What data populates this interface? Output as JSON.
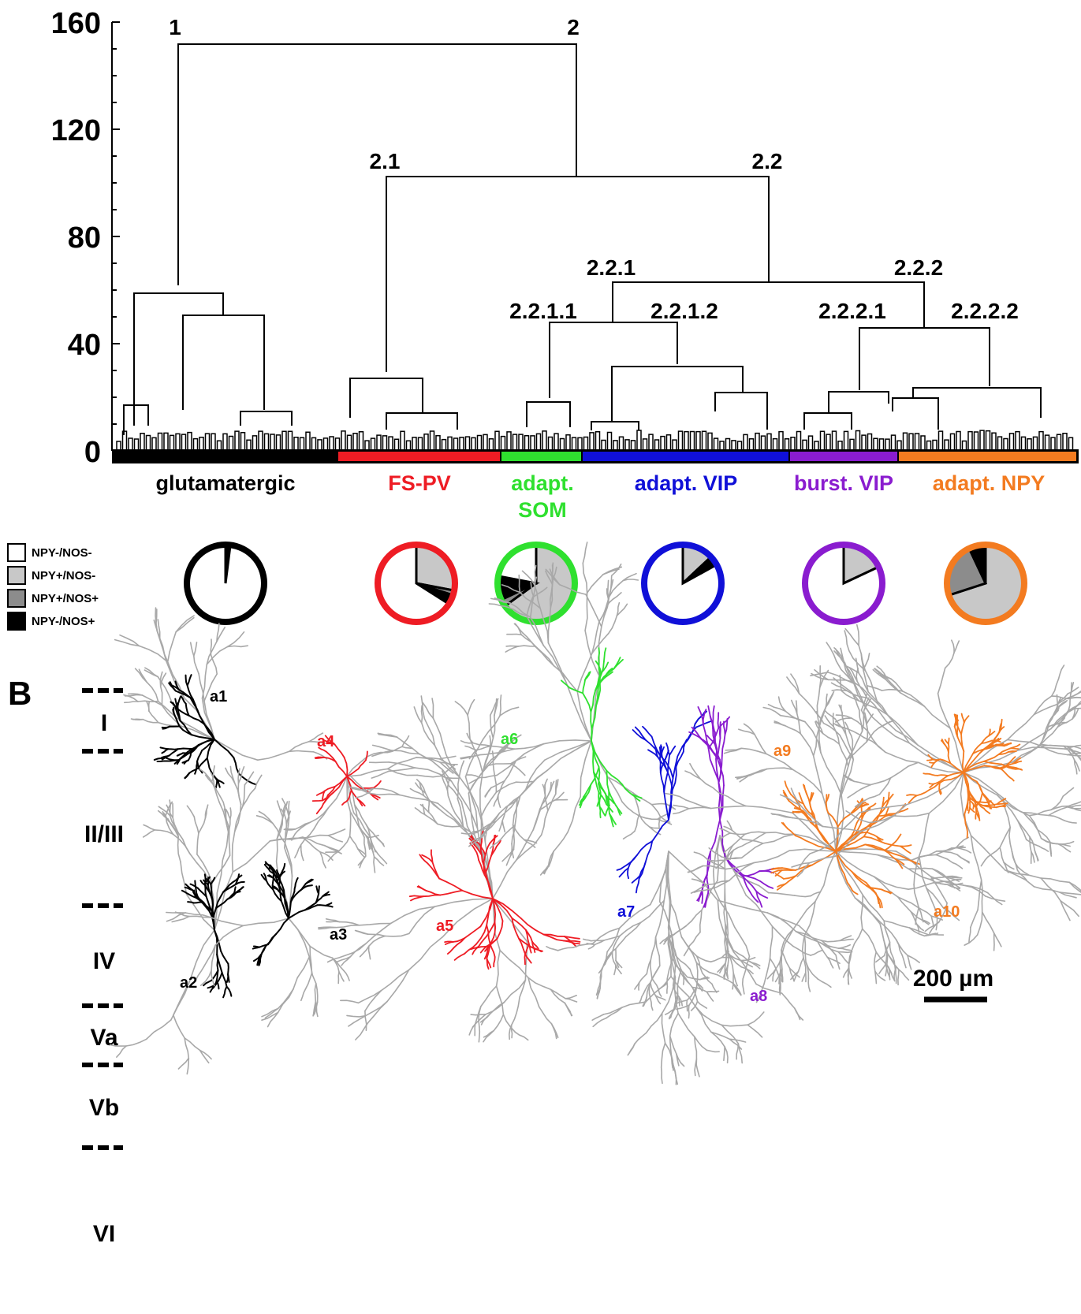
{
  "colors": {
    "glutamatergic": "#000000",
    "fs_pv": "#ee1c24",
    "adapt_som": "#2fe02f",
    "adapt_vip": "#1010d8",
    "burst_vip": "#8a1ccf",
    "adapt_npy": "#f37b20",
    "dendrite_gray": "#a8a8a8",
    "pie_light": "#c8c8c8",
    "pie_mid": "#8c8c8c"
  },
  "dendrogram": {
    "y_axis_ticks": [
      "0",
      "40",
      "80",
      "120",
      "160"
    ],
    "y_axis_range": [
      0,
      160
    ],
    "nodes": [
      {
        "label": "1",
        "height": 152
      },
      {
        "label": "2",
        "height": 152
      },
      {
        "label": "2.1",
        "height": 102
      },
      {
        "label": "2.2",
        "height": 102
      },
      {
        "label": "2.2.1",
        "height": 62
      },
      {
        "label": "2.2.2",
        "height": 62
      },
      {
        "label": "2.2.1.1",
        "height": 47
      },
      {
        "label": "2.2.1.2",
        "height": 47
      },
      {
        "label": "2.2.2.1",
        "height": 45
      },
      {
        "label": "2.2.2.2",
        "height": 45
      }
    ]
  },
  "groups": [
    {
      "key": "glutamatergic",
      "label": "glutamatergic",
      "label2": ""
    },
    {
      "key": "fs_pv",
      "label": "FS-PV",
      "label2": ""
    },
    {
      "key": "adapt_som",
      "label": "adapt.",
      "label2": "SOM"
    },
    {
      "key": "adapt_vip",
      "label": "adapt. VIP",
      "label2": ""
    },
    {
      "key": "burst_vip",
      "label": "burst. VIP",
      "label2": ""
    },
    {
      "key": "adapt_npy",
      "label": "adapt. NPY",
      "label2": ""
    }
  ],
  "legend": {
    "items": [
      {
        "label": "NPY-/NOS-",
        "color": "#ffffff"
      },
      {
        "label": "NPY+/NOS-",
        "color": "#c8c8c8"
      },
      {
        "label": "NPY+/NOS+",
        "color": "#8c8c8c"
      },
      {
        "label": "NPY-/NOS+",
        "color": "#000000"
      }
    ]
  },
  "pies": [
    {
      "group": "glutamatergic",
      "fractions": {
        "npy_neg_nos_neg": 0.98,
        "npy_pos_nos_neg": 0.01,
        "npy_pos_nos_pos": 0.0,
        "npy_neg_nos_pos": 0.01
      }
    },
    {
      "group": "fs_pv",
      "fractions": {
        "npy_neg_nos_neg": 0.66,
        "npy_pos_nos_neg": 0.28,
        "npy_pos_nos_pos": 0.02,
        "npy_neg_nos_pos": 0.04
      }
    },
    {
      "group": "adapt_som",
      "fractions": {
        "npy_neg_nos_neg": 0.22,
        "npy_pos_nos_neg": 0.65,
        "npy_pos_nos_pos": 0.03,
        "npy_neg_nos_pos": 0.1
      }
    },
    {
      "group": "adapt_vip",
      "fractions": {
        "npy_neg_nos_neg": 0.83,
        "npy_pos_nos_neg": 0.13,
        "npy_pos_nos_pos": 0.0,
        "npy_neg_nos_pos": 0.04
      }
    },
    {
      "group": "burst_vip",
      "fractions": {
        "npy_neg_nos_neg": 0.82,
        "npy_pos_nos_neg": 0.18,
        "npy_pos_nos_pos": 0.0,
        "npy_neg_nos_pos": 0.0
      }
    },
    {
      "group": "adapt_npy",
      "fractions": {
        "npy_neg_nos_neg": 0.0,
        "npy_pos_nos_neg": 0.7,
        "npy_pos_nos_pos": 0.23,
        "npy_neg_nos_pos": 0.07
      }
    }
  ],
  "panel_b": {
    "label": "B",
    "layers": [
      "I",
      "II/III",
      "IV",
      "Va",
      "Vb",
      "VI"
    ],
    "cells": [
      {
        "label": "a1",
        "group": "glutamatergic"
      },
      {
        "label": "a2",
        "group": "glutamatergic"
      },
      {
        "label": "a3",
        "group": "glutamatergic"
      },
      {
        "label": "a4",
        "group": "fs_pv"
      },
      {
        "label": "a5",
        "group": "fs_pv"
      },
      {
        "label": "a6",
        "group": "adapt_som"
      },
      {
        "label": "a7",
        "group": "adapt_vip"
      },
      {
        "label": "a8",
        "group": "burst_vip"
      },
      {
        "label": "a9",
        "group": "adapt_npy"
      },
      {
        "label": "a10",
        "group": "adapt_npy"
      }
    ],
    "scale_bar": "200 µm"
  }
}
